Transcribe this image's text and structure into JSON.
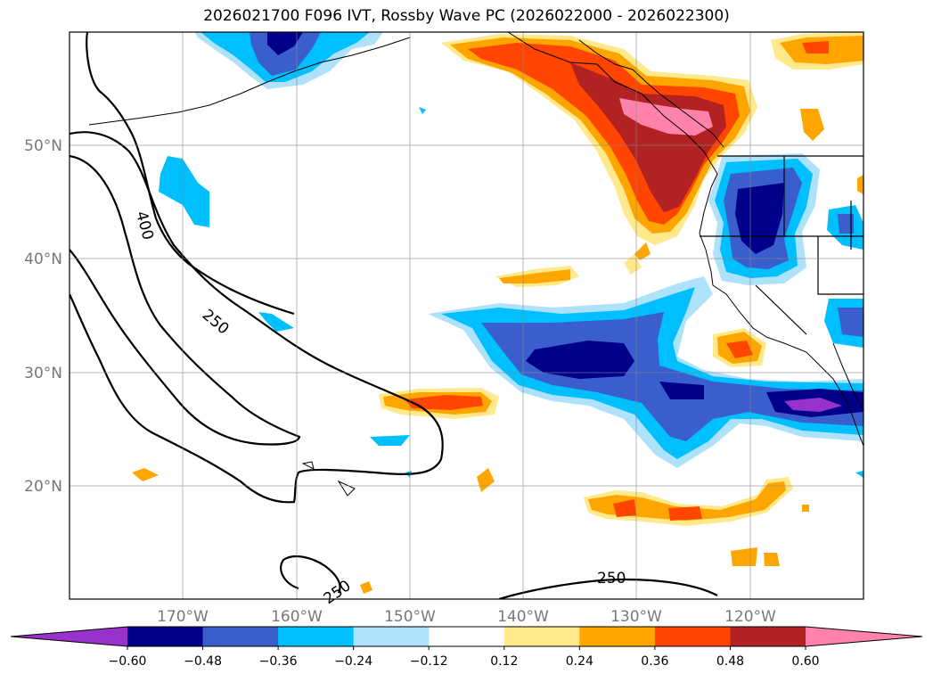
{
  "title": "2026021700 F096 IVT, Rossby Wave PC (2026022000 - 2026022300)",
  "lon_ticks": [
    "170°W",
    "160°W",
    "150°W",
    "140°W",
    "130°W",
    "120°W"
  ],
  "lat_ticks": [
    "50°N",
    "40°N",
    "30°N",
    "20°N"
  ],
  "contour_labels": [
    "400",
    "250",
    "250",
    "250"
  ],
  "colorbar": {
    "labels": [
      "−0.60",
      "−0.48",
      "−0.36",
      "−0.24",
      "−0.12",
      "0.12",
      "0.24",
      "0.36",
      "0.48",
      "0.60"
    ],
    "colors": [
      "#9932cc",
      "#00008b",
      "#3a5fcd",
      "#00bfff",
      "#aee1fa",
      "#ffffff",
      "#ffe98a",
      "#ffa500",
      "#ff4500",
      "#b22222",
      "#ff82ab"
    ]
  },
  "map": {
    "lon_range": [
      -180,
      -110
    ],
    "lat_range": [
      10,
      60
    ]
  }
}
